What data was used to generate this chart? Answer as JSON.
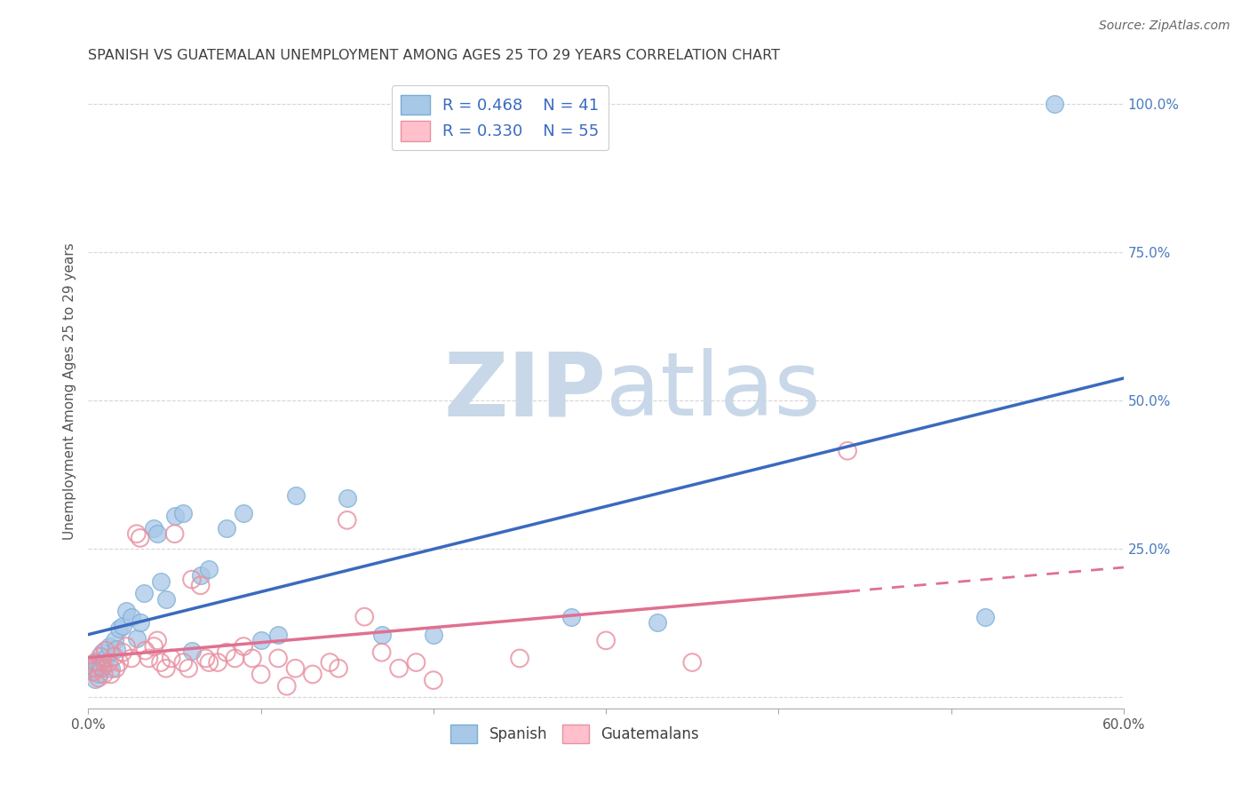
{
  "title": "SPANISH VS GUATEMALAN UNEMPLOYMENT AMONG AGES 25 TO 29 YEARS CORRELATION CHART",
  "source": "Source: ZipAtlas.com",
  "ylabel": "Unemployment Among Ages 25 to 29 years",
  "xlim": [
    0.0,
    0.6
  ],
  "ylim": [
    -0.02,
    1.05
  ],
  "xticks": [
    0.0,
    0.1,
    0.2,
    0.3,
    0.4,
    0.5,
    0.6
  ],
  "xtick_labels": [
    "0.0%",
    "",
    "",
    "",
    "",
    "",
    "60.0%"
  ],
  "ytick_labels_right": [
    "",
    "25.0%",
    "50.0%",
    "75.0%",
    "100.0%"
  ],
  "yticks_right": [
    0.0,
    0.25,
    0.5,
    0.75,
    1.0
  ],
  "grid_color": "#cccccc",
  "background_color": "#ffffff",
  "watermark_zip": "ZIP",
  "watermark_atlas": "atlas",
  "watermark_color": "#c8d8e8",
  "legend_r_spanish": "R = 0.468",
  "legend_n_spanish": "N = 41",
  "legend_r_guatemalan": "R = 0.330",
  "legend_n_guatemalan": "N = 55",
  "spanish_fill_color": "#a8c8e8",
  "spanish_edge_color": "#7aadd4",
  "guatemalan_fill_color": "#ffc0cb",
  "guatemalan_edge_color": "#e890a0",
  "spanish_line_color": "#3a6abf",
  "guatemalan_line_color": "#e07090",
  "title_color": "#404040",
  "source_color": "#666666",
  "ylabel_color": "#555555",
  "tick_color": "#555555",
  "right_tick_color": "#4a7abf",
  "spanish_points": [
    [
      0.002,
      0.045
    ],
    [
      0.003,
      0.05
    ],
    [
      0.004,
      0.03
    ],
    [
      0.005,
      0.06
    ],
    [
      0.006,
      0.038
    ],
    [
      0.007,
      0.052
    ],
    [
      0.008,
      0.075
    ],
    [
      0.009,
      0.058
    ],
    [
      0.01,
      0.065
    ],
    [
      0.012,
      0.085
    ],
    [
      0.013,
      0.048
    ],
    [
      0.015,
      0.095
    ],
    [
      0.016,
      0.08
    ],
    [
      0.018,
      0.115
    ],
    [
      0.02,
      0.12
    ],
    [
      0.022,
      0.145
    ],
    [
      0.025,
      0.135
    ],
    [
      0.028,
      0.098
    ],
    [
      0.03,
      0.125
    ],
    [
      0.032,
      0.175
    ],
    [
      0.038,
      0.285
    ],
    [
      0.04,
      0.275
    ],
    [
      0.042,
      0.195
    ],
    [
      0.045,
      0.165
    ],
    [
      0.05,
      0.305
    ],
    [
      0.055,
      0.31
    ],
    [
      0.06,
      0.078
    ],
    [
      0.065,
      0.205
    ],
    [
      0.07,
      0.215
    ],
    [
      0.08,
      0.285
    ],
    [
      0.09,
      0.31
    ],
    [
      0.1,
      0.095
    ],
    [
      0.11,
      0.105
    ],
    [
      0.12,
      0.34
    ],
    [
      0.15,
      0.335
    ],
    [
      0.17,
      0.105
    ],
    [
      0.2,
      0.105
    ],
    [
      0.28,
      0.135
    ],
    [
      0.33,
      0.125
    ],
    [
      0.52,
      0.135
    ],
    [
      0.56,
      1.0
    ]
  ],
  "guatemalan_points": [
    [
      0.002,
      0.048
    ],
    [
      0.003,
      0.042
    ],
    [
      0.004,
      0.058
    ],
    [
      0.005,
      0.048
    ],
    [
      0.006,
      0.032
    ],
    [
      0.007,
      0.068
    ],
    [
      0.008,
      0.048
    ],
    [
      0.009,
      0.038
    ],
    [
      0.01,
      0.078
    ],
    [
      0.012,
      0.058
    ],
    [
      0.013,
      0.038
    ],
    [
      0.015,
      0.068
    ],
    [
      0.016,
      0.048
    ],
    [
      0.018,
      0.058
    ],
    [
      0.02,
      0.075
    ],
    [
      0.022,
      0.085
    ],
    [
      0.025,
      0.065
    ],
    [
      0.028,
      0.275
    ],
    [
      0.03,
      0.268
    ],
    [
      0.033,
      0.078
    ],
    [
      0.035,
      0.065
    ],
    [
      0.038,
      0.085
    ],
    [
      0.04,
      0.095
    ],
    [
      0.042,
      0.058
    ],
    [
      0.045,
      0.048
    ],
    [
      0.048,
      0.065
    ],
    [
      0.05,
      0.275
    ],
    [
      0.055,
      0.058
    ],
    [
      0.058,
      0.048
    ],
    [
      0.06,
      0.198
    ],
    [
      0.065,
      0.188
    ],
    [
      0.068,
      0.065
    ],
    [
      0.07,
      0.058
    ],
    [
      0.075,
      0.058
    ],
    [
      0.08,
      0.075
    ],
    [
      0.085,
      0.065
    ],
    [
      0.09,
      0.085
    ],
    [
      0.095,
      0.065
    ],
    [
      0.1,
      0.038
    ],
    [
      0.11,
      0.065
    ],
    [
      0.115,
      0.018
    ],
    [
      0.12,
      0.048
    ],
    [
      0.13,
      0.038
    ],
    [
      0.14,
      0.058
    ],
    [
      0.145,
      0.048
    ],
    [
      0.15,
      0.298
    ],
    [
      0.16,
      0.135
    ],
    [
      0.17,
      0.075
    ],
    [
      0.18,
      0.048
    ],
    [
      0.19,
      0.058
    ],
    [
      0.2,
      0.028
    ],
    [
      0.25,
      0.065
    ],
    [
      0.3,
      0.095
    ],
    [
      0.35,
      0.058
    ],
    [
      0.44,
      0.415
    ]
  ],
  "blue_line_x_end": 0.6,
  "pink_line_solid_end": 0.44,
  "pink_line_dash_end": 0.6
}
